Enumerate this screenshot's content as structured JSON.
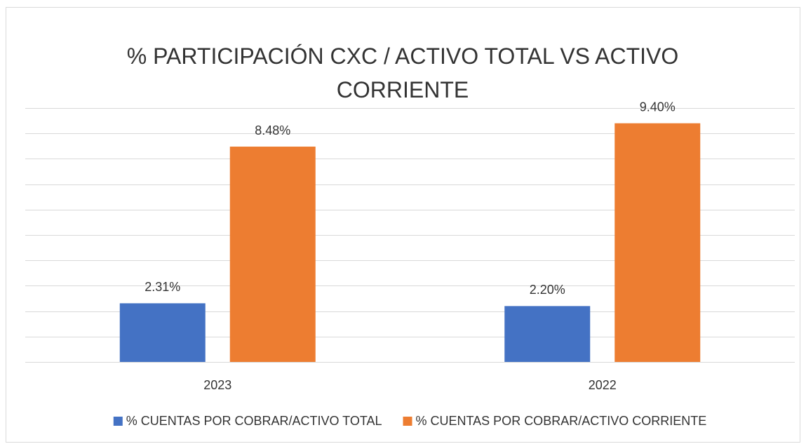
{
  "chart_data": {
    "type": "bar",
    "title": "% PARTICIPACIÓN CXC / ACTIVO TOTAL VS ACTIVO CORRIENTE",
    "categories": [
      "2023",
      "2022"
    ],
    "series": [
      {
        "name": "% CUENTAS POR COBRAR/ACTIVO TOTAL",
        "color": "#4472c4",
        "values": [
          2.31,
          2.2
        ],
        "value_labels": [
          "2.31%",
          "2.20%"
        ]
      },
      {
        "name": "% CUENTAS POR COBRAR/ACTIVO CORRIENTE",
        "color": "#ed7d31",
        "values": [
          8.48,
          9.4
        ],
        "value_labels": [
          "8.48%",
          "9.40%"
        ]
      }
    ],
    "ylim": [
      0,
      10
    ],
    "yticks": [
      0,
      1,
      2,
      3,
      4,
      5,
      6,
      7,
      8,
      9,
      10
    ],
    "grid": true,
    "legend": "bottom"
  }
}
